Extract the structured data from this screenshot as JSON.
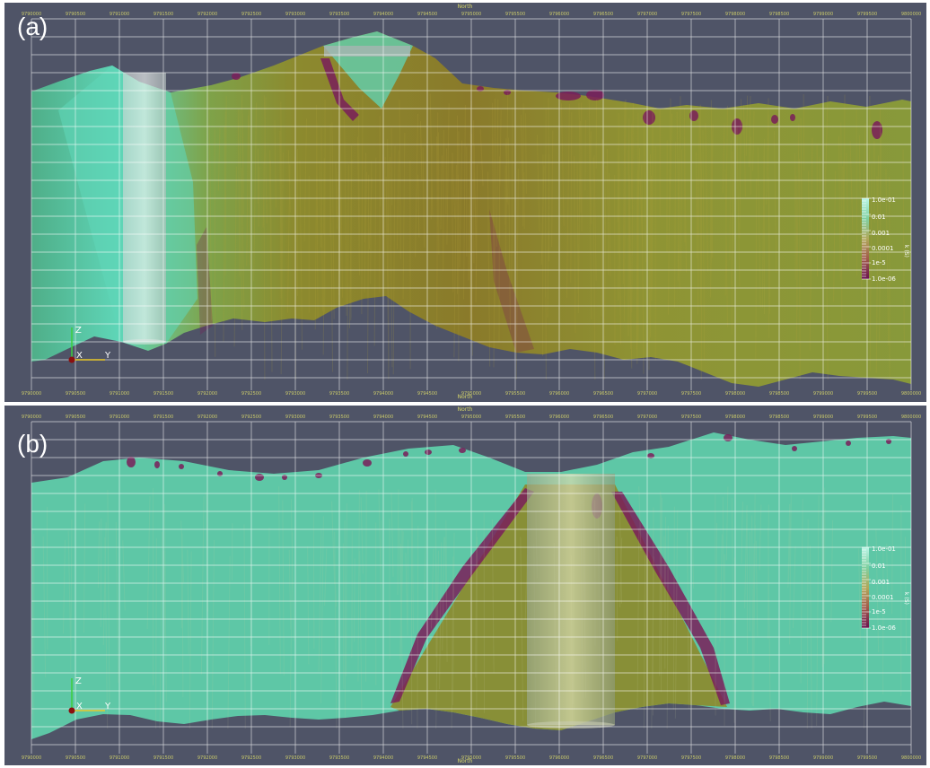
{
  "panels": [
    {
      "id": "a",
      "label": "(a)",
      "axis_title": "North",
      "x_ticks": [
        "9790000",
        "9790500",
        "9791000",
        "9791500",
        "9792000",
        "9792500",
        "9793000",
        "9793500",
        "9794000",
        "9794500",
        "9795000",
        "9795500",
        "9796000",
        "9796500",
        "9797000",
        "9797500",
        "9798000",
        "9798500",
        "9799000",
        "9799500",
        "9800000"
      ],
      "colorbar": {
        "title": "k (S)",
        "labels": [
          "1.0e-01",
          "0.01",
          "0.001",
          "0.0001",
          "1e-5",
          "1.0e-06"
        ]
      },
      "triad": {
        "x": "X",
        "y": "Y",
        "z": "Z"
      }
    },
    {
      "id": "b",
      "label": "(b)",
      "axis_title": "North",
      "x_ticks": [
        "9790000",
        "9790500",
        "9791000",
        "9791500",
        "9792000",
        "9792500",
        "9793000",
        "9793500",
        "9794000",
        "9794500",
        "9795000",
        "9795500",
        "9796000",
        "9796500",
        "9797000",
        "9797500",
        "9798000",
        "9798500",
        "9799000",
        "9799500",
        "9800000"
      ],
      "colorbar": {
        "title": "k (S)",
        "labels": [
          "1.0e-01",
          "0.01",
          "0.001",
          "0.0001",
          "1e-5",
          "1.0e-06"
        ]
      },
      "triad": {
        "x": "X",
        "y": "Y",
        "z": "Z"
      }
    }
  ],
  "colors": {
    "background": "#4f5467",
    "high_conductivity": "#5fd6b8",
    "mid_conductivity": "#8c8a2e",
    "low_conductivity": "#7a1e5a",
    "grid": "#ffffff",
    "tick_text": "#c9c96a"
  }
}
